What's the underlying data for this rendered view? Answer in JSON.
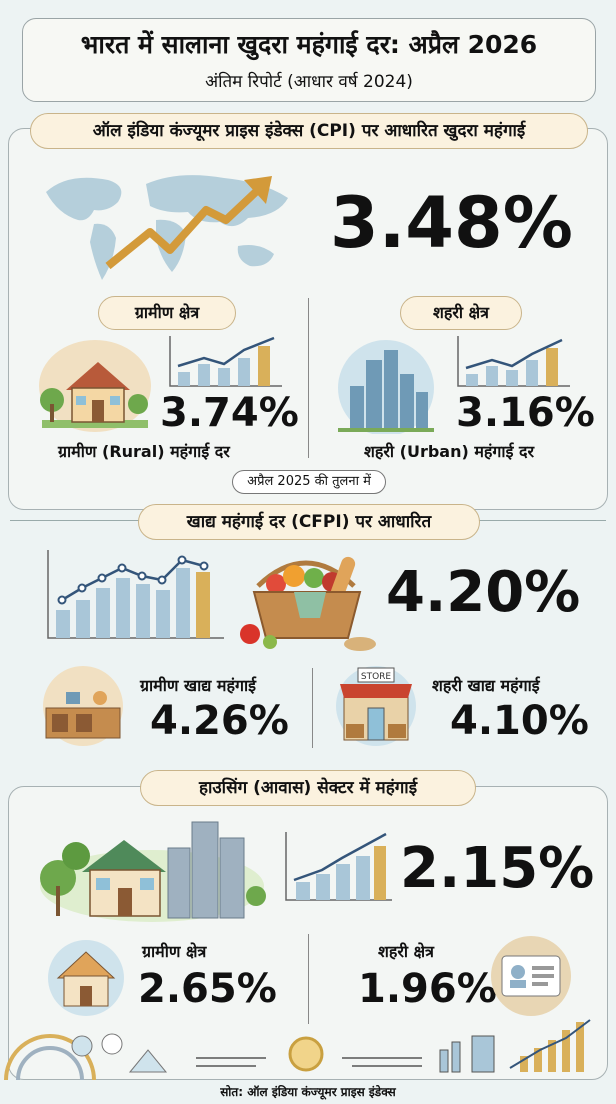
{
  "header": {
    "title": "भारत में सालाना खुदरा महंगाई दर: अप्रैल 2026",
    "subtitle": "अंतिम रिपोर्ट (आधार वर्ष 2024)"
  },
  "cpi": {
    "heading": "ऑल इंडिया कंज्यूमर प्राइस इंडेक्स (CPI) पर आधारित खुदरा महंगाई",
    "value": "3.48%",
    "rural": {
      "pill": "ग्रामीण क्षेत्र",
      "value": "3.74%",
      "label": "ग्रामीण (Rural) महंगाई दर"
    },
    "urban": {
      "pill": "शहरी क्षेत्र",
      "value": "3.16%",
      "label": "शहरी (Urban) महंगाई दर"
    },
    "compare": "अप्रैल 2025 की तुलना में"
  },
  "food": {
    "heading": "खाद्य महंगाई दर (CFPI) पर आधारित",
    "value": "4.20%",
    "rural": {
      "label": "ग्रामीण खाद्य महंगाई",
      "value": "4.26%"
    },
    "urban": {
      "label": "शहरी खाद्य महंगाई",
      "value": "4.10%"
    },
    "store_sign": "STORE"
  },
  "housing": {
    "heading": "हाउसिंग (आवास) सेक्टर में महंगाई",
    "value": "2.15%",
    "rural": {
      "label": "ग्रामीण क्षेत्र",
      "value": "2.65%"
    },
    "urban": {
      "label": "शहरी क्षेत्र",
      "value": "1.96%"
    }
  },
  "source": "सोत: ऑल इंडिया कंज्यूमर प्राइस इंडेक्स",
  "colors": {
    "accent": "#d9b05a",
    "pill_bg": "#fbf2df",
    "bar": "#a9c6d8"
  }
}
